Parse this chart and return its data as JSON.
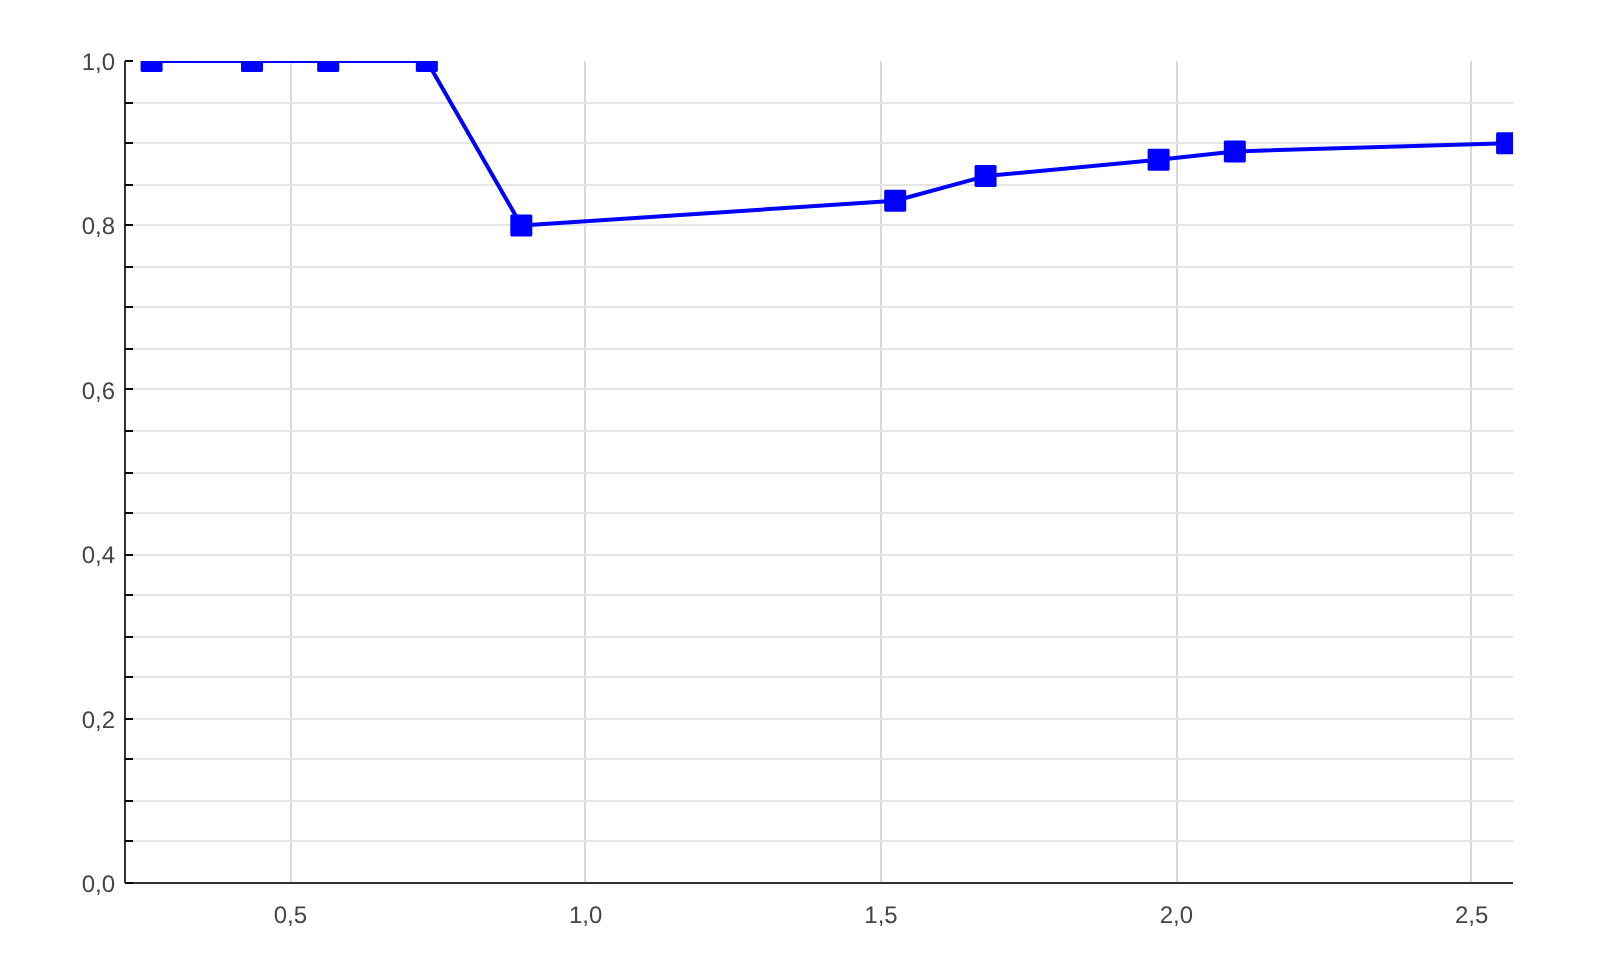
{
  "chart_data": {
    "type": "line",
    "x": [
      0.265,
      0.435,
      0.564,
      0.731,
      0.891,
      1.524,
      1.677,
      1.97,
      2.099,
      2.56
    ],
    "series": [
      {
        "color": "#0000ff",
        "values": [
          1.0,
          1.0,
          1.0,
          1.0,
          0.8,
          0.83,
          0.86,
          0.88,
          0.89,
          0.9
        ]
      }
    ],
    "xlim": [
      0.22,
      2.57
    ],
    "ylim": [
      0,
      1.0
    ],
    "xticks": [
      {
        "value": 0.5,
        "label": "0,5"
      },
      {
        "value": 1.0,
        "label": "1,0"
      },
      {
        "value": 1.5,
        "label": "1,5"
      },
      {
        "value": 2.0,
        "label": "2,0"
      },
      {
        "value": 2.5,
        "label": "2,5"
      }
    ],
    "yticks": [
      {
        "value": 0,
        "label": "0,0"
      },
      {
        "value": 0.05,
        "label": null
      },
      {
        "value": 0.1,
        "label": null
      },
      {
        "value": 0.15,
        "label": null
      },
      {
        "value": 0.2,
        "label": "0,2"
      },
      {
        "value": 0.25,
        "label": null
      },
      {
        "value": 0.3,
        "label": null
      },
      {
        "value": 0.35,
        "label": null
      },
      {
        "value": 0.4,
        "label": "0,4"
      },
      {
        "value": 0.45,
        "label": null
      },
      {
        "value": 0.5,
        "label": null
      },
      {
        "value": 0.55,
        "label": null
      },
      {
        "value": 0.6,
        "label": "0,6"
      },
      {
        "value": 0.65,
        "label": null
      },
      {
        "value": 0.7,
        "label": null
      },
      {
        "value": 0.75,
        "label": null
      },
      {
        "value": 0.8,
        "label": "0,8"
      },
      {
        "value": 0.85,
        "label": null
      },
      {
        "value": 0.9,
        "label": null
      },
      {
        "value": 0.95,
        "label": null
      },
      {
        "value": 1.0,
        "label": "1,0"
      }
    ],
    "grid": true,
    "marker": "square",
    "line_style": "solid"
  }
}
